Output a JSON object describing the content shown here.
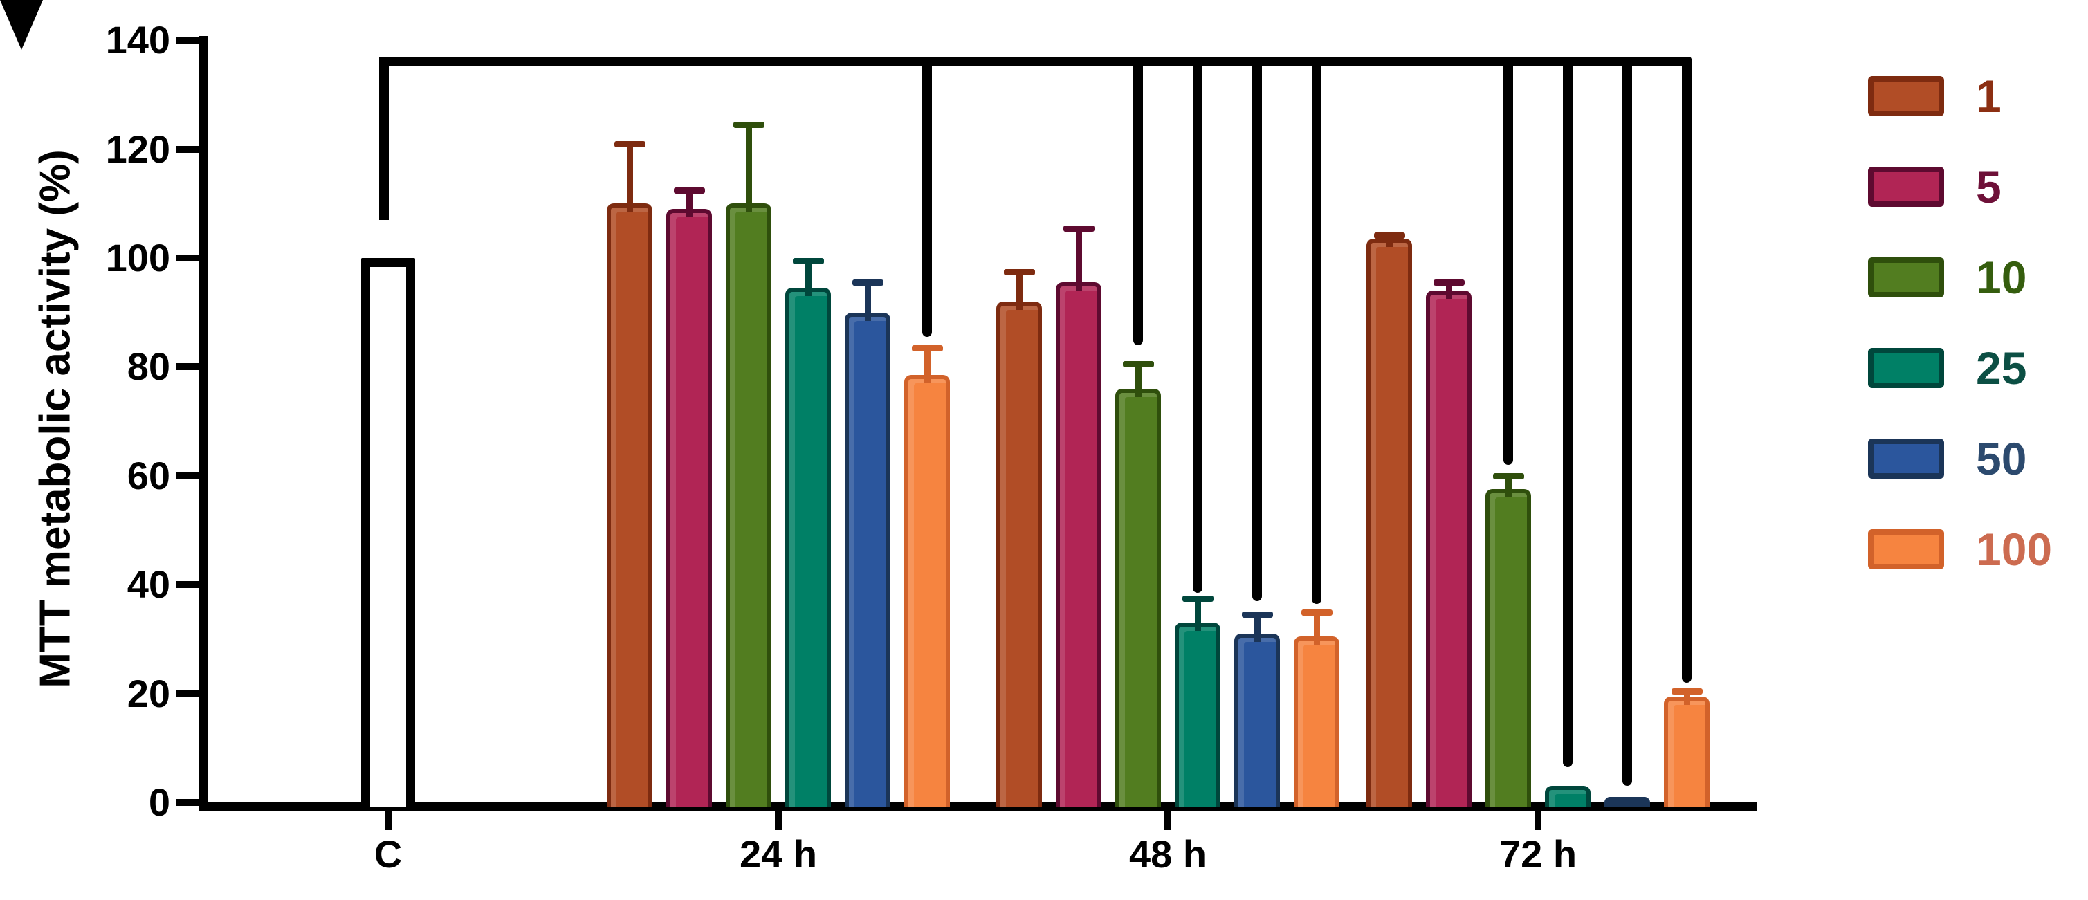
{
  "chart_data": {
    "type": "bar",
    "title": "",
    "xlabel": "",
    "ylabel": "MTT metabolic activity (%)",
    "ylim": [
      0,
      140
    ],
    "yticks": [
      0,
      20,
      40,
      60,
      80,
      100,
      120,
      140
    ],
    "categories": [
      "C",
      "24 h",
      "48 h",
      "72 h"
    ],
    "time_points": [
      "24 h",
      "48 h",
      "72 h"
    ],
    "grid": false,
    "legend_position": "right",
    "control": {
      "label": "C",
      "value": 100,
      "fill": "#FFFFFF",
      "border": "#000000"
    },
    "series": [
      {
        "name": "1",
        "fill": "#B14D26",
        "border": "#7E2B10",
        "label_color": "#8C2F12",
        "values": [
          110,
          92,
          103.5
        ],
        "errors": [
          11,
          5.5,
          0.7
        ]
      },
      {
        "name": "5",
        "fill": "#B12555",
        "border": "#5E0A30",
        "label_color": "#6E1038",
        "values": [
          109,
          95.5,
          94
        ],
        "errors": [
          3.5,
          10,
          1.5
        ]
      },
      {
        "name": "10",
        "fill": "#527D20",
        "border": "#2F4F0C",
        "label_color": "#355D0E",
        "values": [
          110,
          76,
          57.5
        ],
        "errors": [
          14.5,
          4.5,
          2.5
        ]
      },
      {
        "name": "25",
        "fill": "#008066",
        "border": "#00473C",
        "label_color": "#0C4F44",
        "values": [
          94.5,
          33,
          3
        ],
        "errors": [
          5,
          4.5,
          0
        ]
      },
      {
        "name": "50",
        "fill": "#2B569D",
        "border": "#1B3558",
        "label_color": "#2C4A6E",
        "values": [
          90,
          31,
          1
        ],
        "errors": [
          5.5,
          3.5,
          0
        ]
      },
      {
        "name": "100",
        "fill": "#F68440",
        "border": "#D2622A",
        "label_color": "#CC6B50",
        "values": [
          78.5,
          30.5,
          19.5
        ],
        "errors": [
          5,
          4.5,
          1
        ]
      }
    ],
    "significance": {
      "bracket_level_pct": 137,
      "arrow": {
        "target": "C",
        "points_to_value": 100
      },
      "drops": [
        {
          "category": "24 h",
          "series": "100",
          "end_pct": 85.5
        },
        {
          "category": "48 h",
          "series": "10",
          "end_pct": 84
        },
        {
          "category": "48 h",
          "series": "25",
          "end_pct": 38.5
        },
        {
          "category": "48 h",
          "series": "50",
          "end_pct": 37
        },
        {
          "category": "48 h",
          "series": "100",
          "end_pct": 36.5
        },
        {
          "category": "72 h",
          "series": "10",
          "end_pct": 62
        },
        {
          "category": "72 h",
          "series": "25",
          "end_pct": 6.5
        },
        {
          "category": "72 h",
          "series": "50",
          "end_pct": 3
        },
        {
          "category": "72 h",
          "series": "100",
          "end_pct": 22
        }
      ]
    }
  },
  "legend": {
    "items": [
      "1",
      "5",
      "10",
      "25",
      "50",
      "100"
    ]
  }
}
